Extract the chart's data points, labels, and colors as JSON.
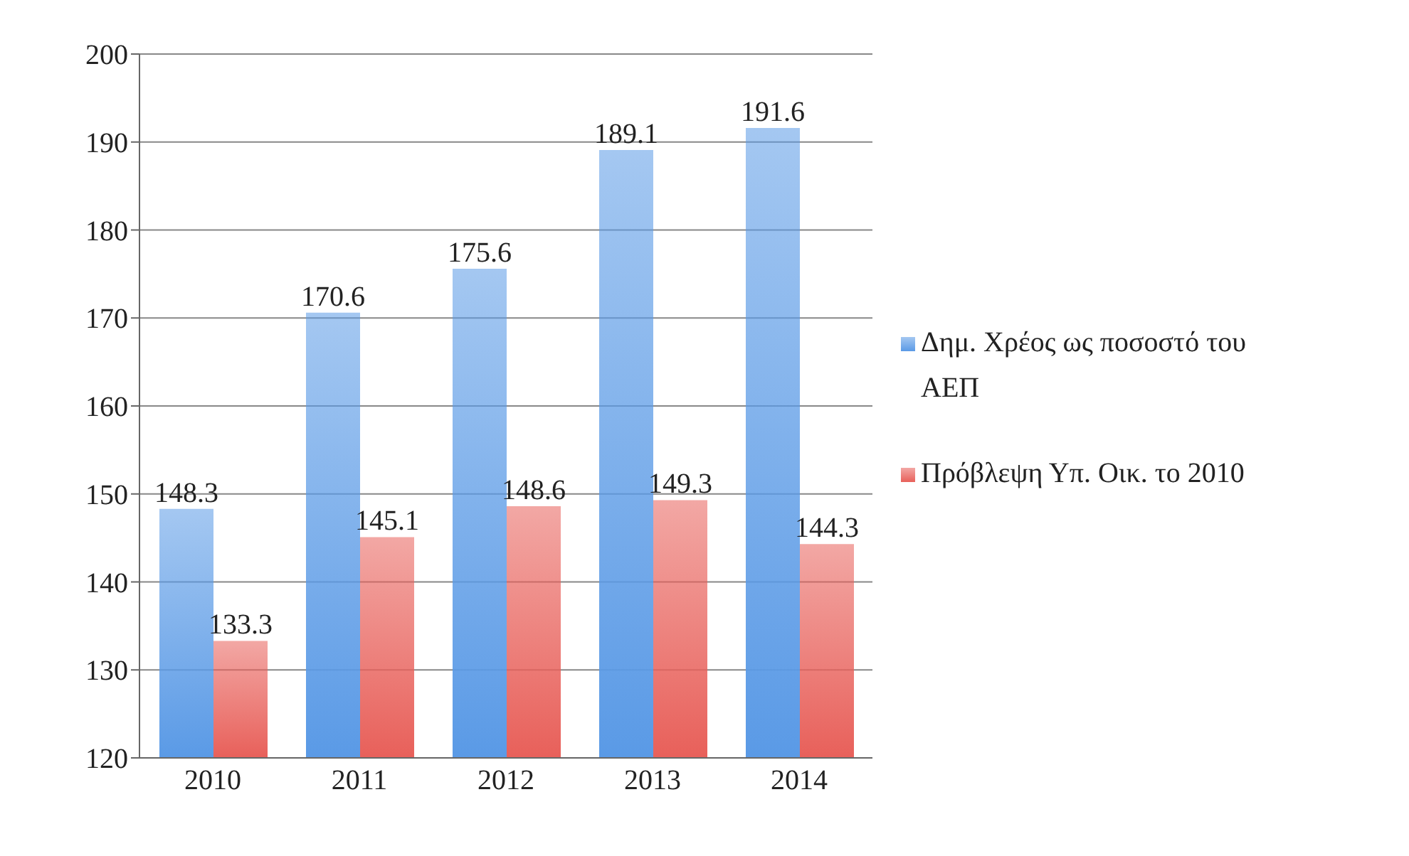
{
  "chart_data": {
    "type": "bar",
    "categories": [
      "2010",
      "2011",
      "2012",
      "2013",
      "2014"
    ],
    "series": [
      {
        "name": "Δημ. Χρέος ως ποσοστό του ΑΕΠ",
        "color": "#5a9ae6",
        "values": [
          148.3,
          170.6,
          175.6,
          189.1,
          191.6
        ]
      },
      {
        "name": "Πρόβλεψη Υπ. Οικ. το 2010",
        "color": "#e8605a",
        "values": [
          133.3,
          145.1,
          148.6,
          149.3,
          144.3
        ]
      }
    ],
    "ylim": [
      120,
      200
    ],
    "yticks": [
      120,
      130,
      140,
      150,
      160,
      170,
      180,
      190,
      200
    ],
    "grid": "y",
    "legend": "right",
    "data_labels": true
  }
}
